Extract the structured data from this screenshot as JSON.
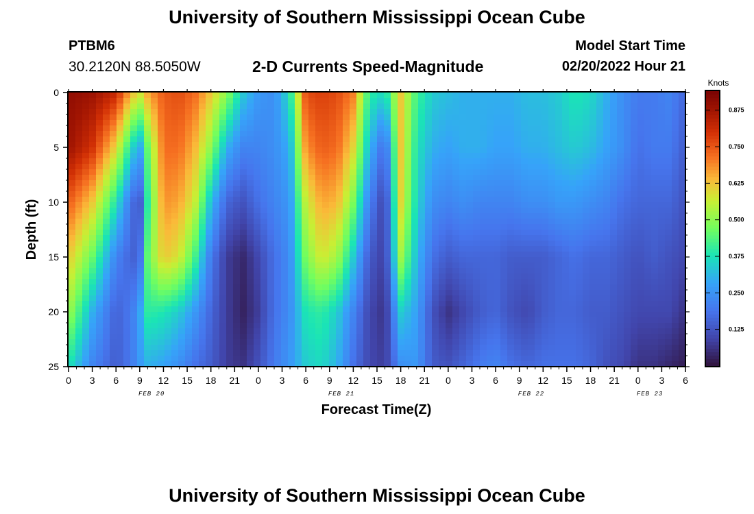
{
  "header": {
    "title": "University of Southern Mississippi Ocean Cube",
    "station_id": "PTBM6",
    "coordinates": "30.2120N  88.5050W",
    "plot_title": "2-D Currents Speed-Magnitude",
    "model_start_label": "Model Start Time",
    "model_start_value": "02/20/2022 Hour 21"
  },
  "footer": {
    "title": "University of Southern Mississippi Ocean Cube"
  },
  "chart_data": {
    "type": "heatmap",
    "title": "2-D Currents Speed-Magnitude",
    "xlabel": "Forecast Time(Z)",
    "ylabel": "Depth (ft)",
    "x_hours_range": [
      0,
      78
    ],
    "ylim": [
      0,
      25
    ],
    "y_inverted": true,
    "x_ticks": [
      "0",
      "3",
      "6",
      "9",
      "12",
      "15",
      "18",
      "21",
      "0",
      "3",
      "6",
      "9",
      "12",
      "15",
      "18",
      "21",
      "0",
      "3",
      "6",
      "9",
      "12",
      "15",
      "18",
      "21",
      "0",
      "3",
      "6"
    ],
    "y_ticks": [
      "0",
      "5",
      "10",
      "15",
      "20",
      "25"
    ],
    "date_labels": [
      {
        "text": "FEB 20",
        "hour": 10.5
      },
      {
        "text": "FEB 21",
        "hour": 34.5
      },
      {
        "text": "FEB 22",
        "hour": 58.5
      },
      {
        "text": "FEB 23",
        "hour": 73.5
      }
    ],
    "colorbar": {
      "unit": "Knots",
      "range": [
        0.0,
        0.94
      ],
      "ticks": [
        "0.125",
        "0.250",
        "0.375",
        "0.500",
        "0.625",
        "0.750",
        "0.875"
      ]
    },
    "speed_field": {
      "description": "speed (knots) at depth 0, 5, 10, 15, 20, 25 ft for each forecast hour",
      "depths": [
        0,
        5,
        10,
        15,
        20,
        25
      ],
      "hours": [
        0,
        3,
        6,
        8,
        9,
        10,
        12,
        14,
        16,
        18,
        20,
        22,
        24,
        26,
        28,
        30,
        32,
        34,
        36,
        38,
        40,
        42,
        44,
        46,
        48,
        50,
        52,
        54,
        56,
        58,
        60,
        62,
        64,
        66,
        68,
        70,
        72,
        74,
        76,
        78
      ],
      "values": [
        [
          0.9,
          0.88,
          0.74,
          0.62,
          0.52,
          0.38
        ],
        [
          0.88,
          0.8,
          0.62,
          0.46,
          0.3,
          0.22
        ],
        [
          0.82,
          0.6,
          0.38,
          0.22,
          0.15,
          0.14
        ],
        [
          0.64,
          0.36,
          0.18,
          0.15,
          0.2,
          0.2
        ],
        [
          0.58,
          0.28,
          0.12,
          0.16,
          0.28,
          0.26
        ],
        [
          0.66,
          0.46,
          0.4,
          0.46,
          0.4,
          0.3
        ],
        [
          0.74,
          0.72,
          0.68,
          0.62,
          0.38,
          0.28
        ],
        [
          0.76,
          0.72,
          0.66,
          0.58,
          0.34,
          0.24
        ],
        [
          0.72,
          0.64,
          0.56,
          0.42,
          0.26,
          0.18
        ],
        [
          0.62,
          0.5,
          0.32,
          0.2,
          0.16,
          0.14
        ],
        [
          0.5,
          0.3,
          0.16,
          0.08,
          0.08,
          0.08
        ],
        [
          0.34,
          0.22,
          0.12,
          0.04,
          0.03,
          0.06
        ],
        [
          0.26,
          0.22,
          0.18,
          0.1,
          0.08,
          0.12
        ],
        [
          0.24,
          0.24,
          0.22,
          0.18,
          0.18,
          0.2
        ],
        [
          0.38,
          0.3,
          0.26,
          0.24,
          0.24,
          0.26
        ],
        [
          0.76,
          0.68,
          0.56,
          0.48,
          0.38,
          0.34
        ],
        [
          0.78,
          0.74,
          0.66,
          0.58,
          0.4,
          0.36
        ],
        [
          0.76,
          0.72,
          0.64,
          0.52,
          0.34,
          0.3
        ],
        [
          0.7,
          0.6,
          0.48,
          0.34,
          0.22,
          0.18
        ],
        [
          0.4,
          0.32,
          0.22,
          0.14,
          0.1,
          0.1
        ],
        [
          0.36,
          0.16,
          0.08,
          0.08,
          0.06,
          0.08
        ],
        [
          0.62,
          0.62,
          0.6,
          0.52,
          0.34,
          0.24
        ],
        [
          0.42,
          0.38,
          0.36,
          0.32,
          0.28,
          0.26
        ],
        [
          0.34,
          0.3,
          0.24,
          0.18,
          0.12,
          0.14
        ],
        [
          0.32,
          0.28,
          0.22,
          0.14,
          0.06,
          0.12
        ],
        [
          0.3,
          0.3,
          0.24,
          0.16,
          0.1,
          0.16
        ],
        [
          0.3,
          0.3,
          0.22,
          0.16,
          0.14,
          0.2
        ],
        [
          0.3,
          0.28,
          0.22,
          0.16,
          0.16,
          0.22
        ],
        [
          0.3,
          0.28,
          0.22,
          0.14,
          0.12,
          0.18
        ],
        [
          0.32,
          0.3,
          0.24,
          0.14,
          0.1,
          0.16
        ],
        [
          0.32,
          0.3,
          0.24,
          0.14,
          0.14,
          0.18
        ],
        [
          0.34,
          0.32,
          0.26,
          0.16,
          0.16,
          0.18
        ],
        [
          0.38,
          0.34,
          0.26,
          0.18,
          0.16,
          0.18
        ],
        [
          0.36,
          0.32,
          0.24,
          0.16,
          0.14,
          0.16
        ],
        [
          0.3,
          0.28,
          0.22,
          0.16,
          0.14,
          0.12
        ],
        [
          0.24,
          0.24,
          0.18,
          0.14,
          0.12,
          0.1
        ],
        [
          0.2,
          0.18,
          0.16,
          0.12,
          0.1,
          0.06
        ],
        [
          0.2,
          0.2,
          0.16,
          0.14,
          0.1,
          0.06
        ],
        [
          0.22,
          0.2,
          0.16,
          0.12,
          0.1,
          0.04
        ],
        [
          0.16,
          0.14,
          0.12,
          0.1,
          0.06,
          0.02
        ]
      ]
    }
  }
}
